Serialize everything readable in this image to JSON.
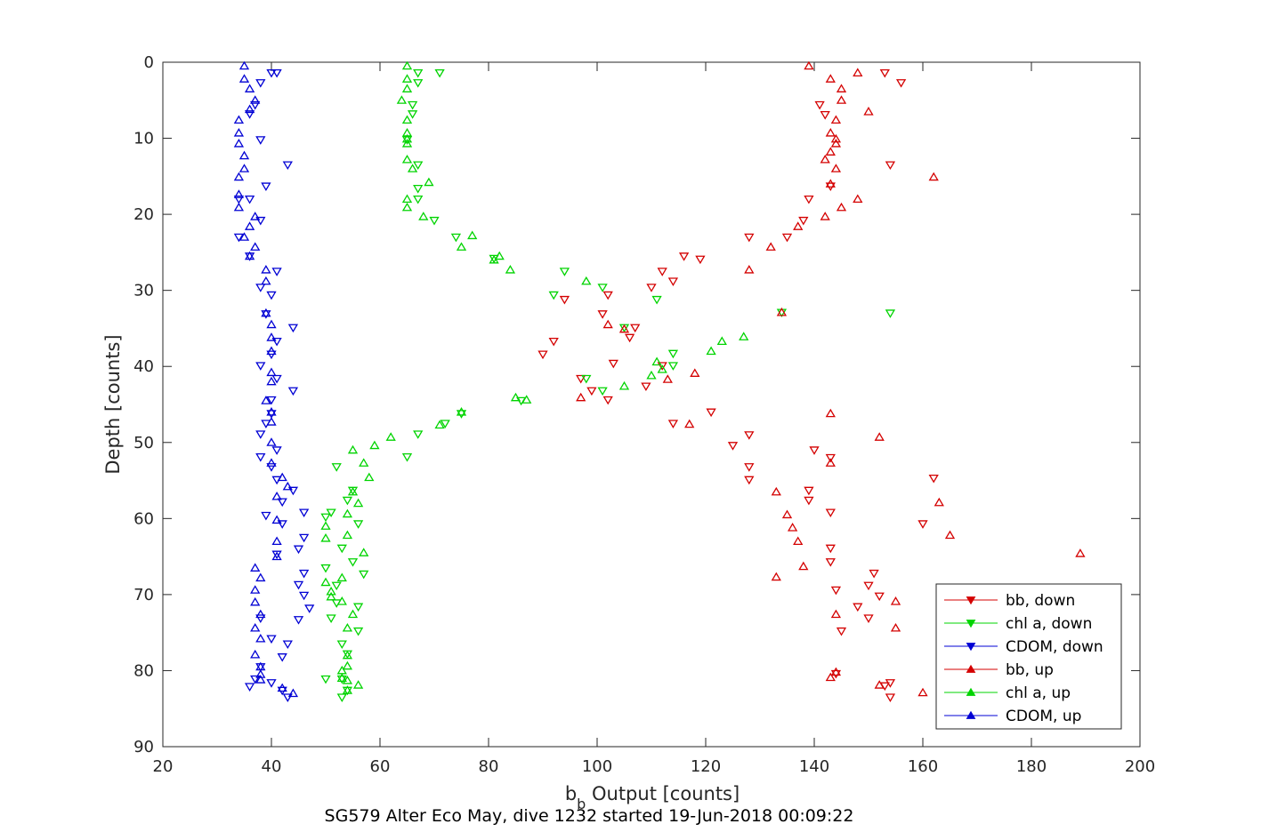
{
  "chart_data": {
    "type": "scatter",
    "xlabel_main": "b",
    "xlabel_sub": "b",
    "xlabel_rest": " Output [counts]",
    "ylabel": "Depth [counts]",
    "title": "SG579 Alter Eco May, dive 1232 started 19-Jun-2018 00:09:22",
    "xlim": [
      20,
      200
    ],
    "ylim": [
      0,
      90
    ],
    "y_reversed": true,
    "grid": true,
    "legend_position": "bottom-right",
    "x_ticks": [
      "20",
      "40",
      "60",
      "80",
      "100",
      "120",
      "140",
      "160",
      "180",
      "200"
    ],
    "y_ticks": [
      "0",
      "10",
      "20",
      "30",
      "40",
      "50",
      "60",
      "70",
      "80",
      "90"
    ],
    "series": [
      {
        "name": "bb, down",
        "color": "#d40000",
        "marker": "triangle-down",
        "points": [
          [
            153,
            1.4
          ],
          [
            156,
            2.7
          ],
          [
            141,
            5.6
          ],
          [
            142,
            6.9
          ],
          [
            154,
            13.5
          ],
          [
            143,
            16.3
          ],
          [
            139,
            18
          ],
          [
            138,
            20.8
          ],
          [
            135,
            23
          ],
          [
            128,
            23
          ],
          [
            119,
            25.9
          ],
          [
            116,
            25.5
          ],
          [
            112,
            27.5
          ],
          [
            110,
            29.6
          ],
          [
            114,
            28.8
          ],
          [
            102,
            30.6
          ],
          [
            94,
            31.2
          ],
          [
            101,
            33.1
          ],
          [
            107,
            34.9
          ],
          [
            106,
            36.2
          ],
          [
            92,
            36.7
          ],
          [
            90,
            38.4
          ],
          [
            112,
            39.9
          ],
          [
            103,
            39.6
          ],
          [
            97,
            41.6
          ],
          [
            99,
            43.2
          ],
          [
            102,
            44.4
          ],
          [
            109,
            42.6
          ],
          [
            114,
            47.5
          ],
          [
            121,
            46
          ],
          [
            128,
            49
          ],
          [
            125,
            50.4
          ],
          [
            140,
            51
          ],
          [
            143,
            52
          ],
          [
            128,
            53.2
          ],
          [
            128,
            54.9
          ],
          [
            162,
            54.7
          ],
          [
            139,
            56.3
          ],
          [
            139,
            57.6
          ],
          [
            143,
            59.2
          ],
          [
            160,
            60.7
          ],
          [
            143,
            63.9
          ],
          [
            143,
            65.7
          ],
          [
            151,
            67.2
          ],
          [
            150,
            68.8
          ],
          [
            152,
            70.2
          ],
          [
            144,
            69.4
          ],
          [
            148,
            71.6
          ],
          [
            150,
            73.1
          ],
          [
            145,
            74.8
          ],
          [
            154,
            81.6
          ],
          [
            153,
            82
          ],
          [
            144,
            80.4
          ],
          [
            154,
            83.5
          ]
        ]
      },
      {
        "name": "chl a, down",
        "color": "#00d400",
        "marker": "triangle-down",
        "points": [
          [
            71,
            1.4
          ],
          [
            67,
            1.4
          ],
          [
            67,
            2.7
          ],
          [
            66,
            5.6
          ],
          [
            66,
            6.8
          ],
          [
            65,
            10.2
          ],
          [
            67,
            13.5
          ],
          [
            67,
            16.6
          ],
          [
            67,
            18
          ],
          [
            70,
            20.8
          ],
          [
            74,
            23
          ],
          [
            81,
            25.8
          ],
          [
            94,
            27.5
          ],
          [
            101,
            29.6
          ],
          [
            111,
            31.2
          ],
          [
            92,
            30.6
          ],
          [
            134,
            32.9
          ],
          [
            154,
            33
          ],
          [
            105,
            34.9
          ],
          [
            114,
            38.3
          ],
          [
            114,
            39.9
          ],
          [
            98,
            41.6
          ],
          [
            101,
            43.2
          ],
          [
            86,
            44.5
          ],
          [
            75,
            46.2
          ],
          [
            72,
            47.5
          ],
          [
            67,
            48.9
          ],
          [
            65,
            51.9
          ],
          [
            52,
            53.2
          ],
          [
            55,
            56.3
          ],
          [
            54,
            57.6
          ],
          [
            51,
            59.2
          ],
          [
            50,
            59.8
          ],
          [
            56,
            60.7
          ],
          [
            53,
            63.9
          ],
          [
            55,
            65.7
          ],
          [
            50,
            66.5
          ],
          [
            57,
            67.3
          ],
          [
            52,
            68.8
          ],
          [
            52,
            71.1
          ],
          [
            56,
            71.6
          ],
          [
            51,
            73.1
          ],
          [
            56,
            74.8
          ],
          [
            53,
            76.5
          ],
          [
            54,
            77.8
          ],
          [
            53,
            81.1
          ],
          [
            50,
            81.1
          ],
          [
            54,
            82.6
          ],
          [
            53,
            83.5
          ]
        ]
      },
      {
        "name": "CDOM, down",
        "color": "#0000d4",
        "marker": "triangle-down",
        "points": [
          [
            40,
            1.4
          ],
          [
            41,
            1.4
          ],
          [
            38,
            2.7
          ],
          [
            37,
            5.6
          ],
          [
            36,
            6.8
          ],
          [
            38,
            10.2
          ],
          [
            43,
            13.5
          ],
          [
            39,
            16.3
          ],
          [
            36,
            18
          ],
          [
            34,
            18
          ],
          [
            38,
            20.8
          ],
          [
            34,
            23
          ],
          [
            36,
            25.5
          ],
          [
            41,
            27.5
          ],
          [
            38,
            29.6
          ],
          [
            40,
            30.6
          ],
          [
            39,
            33.1
          ],
          [
            44,
            34.9
          ],
          [
            41,
            36.7
          ],
          [
            40,
            38.4
          ],
          [
            38,
            39.9
          ],
          [
            41,
            41.6
          ],
          [
            44,
            43.2
          ],
          [
            40,
            44.4
          ],
          [
            40,
            46.2
          ],
          [
            39,
            47.5
          ],
          [
            38,
            48.9
          ],
          [
            41,
            51
          ],
          [
            38,
            51.9
          ],
          [
            40,
            53.2
          ],
          [
            41,
            54.9
          ],
          [
            44,
            56.3
          ],
          [
            42,
            57.8
          ],
          [
            39,
            59.6
          ],
          [
            46,
            59.2
          ],
          [
            42,
            60.7
          ],
          [
            46,
            62.5
          ],
          [
            45,
            64
          ],
          [
            41,
            64.7
          ],
          [
            46,
            67.2
          ],
          [
            45,
            68.7
          ],
          [
            46,
            70.1
          ],
          [
            47,
            71.8
          ],
          [
            45,
            73.3
          ],
          [
            38,
            73.1
          ],
          [
            40,
            75.8
          ],
          [
            43,
            76.5
          ],
          [
            42,
            78.2
          ],
          [
            38,
            79.5
          ],
          [
            40,
            81.6
          ],
          [
            37,
            81.1
          ],
          [
            36,
            82.1
          ],
          [
            42,
            82.6
          ],
          [
            43,
            83.5
          ]
        ]
      },
      {
        "name": "bb, up",
        "color": "#d40000",
        "marker": "triangle-up",
        "points": [
          [
            139,
            0.5
          ],
          [
            148,
            1.4
          ],
          [
            143,
            2.2
          ],
          [
            145,
            3.5
          ],
          [
            145,
            5
          ],
          [
            150,
            6.5
          ],
          [
            144,
            7.6
          ],
          [
            143,
            9.3
          ],
          [
            144,
            10.1
          ],
          [
            144,
            10.7
          ],
          [
            143,
            11.8
          ],
          [
            142,
            12.8
          ],
          [
            144,
            14
          ],
          [
            162,
            15.1
          ],
          [
            143,
            16
          ],
          [
            148,
            18
          ],
          [
            145,
            19.1
          ],
          [
            142,
            20.3
          ],
          [
            137,
            21.6
          ],
          [
            132,
            24.3
          ],
          [
            128,
            27.3
          ],
          [
            134,
            32.9
          ],
          [
            102,
            34.5
          ],
          [
            105,
            35.1
          ],
          [
            118,
            40.9
          ],
          [
            113,
            41.7
          ],
          [
            97,
            44.1
          ],
          [
            117,
            47.6
          ],
          [
            143,
            46.2
          ],
          [
            152,
            49.3
          ],
          [
            143,
            52.7
          ],
          [
            133,
            56.5
          ],
          [
            163,
            57.9
          ],
          [
            135,
            59.5
          ],
          [
            165,
            62.2
          ],
          [
            136,
            61.2
          ],
          [
            137,
            63
          ],
          [
            189,
            64.6
          ],
          [
            138,
            66.3
          ],
          [
            133,
            67.7
          ],
          [
            155,
            70.9
          ],
          [
            144,
            72.6
          ],
          [
            155,
            74.4
          ],
          [
            144,
            80.2
          ],
          [
            143,
            80.9
          ],
          [
            160,
            82.9
          ],
          [
            152,
            81.9
          ]
        ]
      },
      {
        "name": "chl a, up",
        "color": "#00d400",
        "marker": "triangle-up",
        "points": [
          [
            65,
            0.5
          ],
          [
            65,
            2.2
          ],
          [
            65,
            3.5
          ],
          [
            64,
            5
          ],
          [
            65,
            7.6
          ],
          [
            65,
            9.3
          ],
          [
            65,
            10.1
          ],
          [
            65,
            10.7
          ],
          [
            65,
            12.8
          ],
          [
            66,
            14
          ],
          [
            69,
            15.8
          ],
          [
            65,
            18
          ],
          [
            65,
            19.1
          ],
          [
            68,
            20.3
          ],
          [
            77,
            22.8
          ],
          [
            75,
            24.3
          ],
          [
            82,
            25.5
          ],
          [
            81,
            26
          ],
          [
            84,
            27.3
          ],
          [
            98,
            28.8
          ],
          [
            127,
            36.1
          ],
          [
            123,
            36.7
          ],
          [
            121,
            38
          ],
          [
            111,
            39.4
          ],
          [
            112,
            40.4
          ],
          [
            110,
            41.2
          ],
          [
            105,
            42.6
          ],
          [
            87,
            44.4
          ],
          [
            85,
            44.1
          ],
          [
            75,
            46
          ],
          [
            71,
            47.7
          ],
          [
            62,
            49.3
          ],
          [
            59,
            50.4
          ],
          [
            55,
            51
          ],
          [
            57,
            52.7
          ],
          [
            58,
            54.6
          ],
          [
            55,
            56.5
          ],
          [
            56,
            58
          ],
          [
            54,
            59.4
          ],
          [
            50,
            61
          ],
          [
            50,
            62.6
          ],
          [
            54,
            62.2
          ],
          [
            57,
            64.5
          ],
          [
            50,
            68.4
          ],
          [
            53,
            67.8
          ],
          [
            51,
            69.6
          ],
          [
            51,
            70.3
          ],
          [
            53,
            70.9
          ],
          [
            55,
            72.6
          ],
          [
            54,
            74.4
          ],
          [
            54,
            78
          ],
          [
            54,
            79.4
          ],
          [
            53,
            80
          ],
          [
            53,
            81
          ],
          [
            54,
            81.3
          ],
          [
            56,
            81.9
          ],
          [
            54,
            82.6
          ]
        ]
      },
      {
        "name": "CDOM, up",
        "color": "#0000d4",
        "marker": "triangle-up",
        "points": [
          [
            35,
            0.5
          ],
          [
            35,
            2.2
          ],
          [
            36,
            3.5
          ],
          [
            37,
            5
          ],
          [
            36,
            6.2
          ],
          [
            34,
            7.6
          ],
          [
            34,
            9.3
          ],
          [
            34,
            10.7
          ],
          [
            35,
            12.3
          ],
          [
            35,
            14
          ],
          [
            34,
            15.1
          ],
          [
            34,
            17.4
          ],
          [
            34,
            19.1
          ],
          [
            37,
            20.3
          ],
          [
            36,
            21.6
          ],
          [
            35,
            23
          ],
          [
            37,
            24.3
          ],
          [
            36,
            25.5
          ],
          [
            39,
            27.3
          ],
          [
            39,
            28.8
          ],
          [
            39,
            33
          ],
          [
            40,
            34.5
          ],
          [
            40,
            36.2
          ],
          [
            40,
            38
          ],
          [
            40,
            40.8
          ],
          [
            40,
            42
          ],
          [
            39,
            44.5
          ],
          [
            40,
            46
          ],
          [
            40,
            47.3
          ],
          [
            40,
            50
          ],
          [
            40,
            52.7
          ],
          [
            42,
            54.6
          ],
          [
            43,
            55.8
          ],
          [
            41,
            57.1
          ],
          [
            41,
            60.2
          ],
          [
            41,
            63
          ],
          [
            41,
            65
          ],
          [
            37,
            66.5
          ],
          [
            38,
            67.8
          ],
          [
            37,
            69.4
          ],
          [
            37,
            71
          ],
          [
            38,
            72.6
          ],
          [
            37,
            74.4
          ],
          [
            38,
            75.8
          ],
          [
            37,
            77.9
          ],
          [
            38,
            79.5
          ],
          [
            38,
            80.5
          ],
          [
            38,
            81.2
          ],
          [
            42,
            82.3
          ],
          [
            44,
            83
          ]
        ]
      }
    ]
  }
}
